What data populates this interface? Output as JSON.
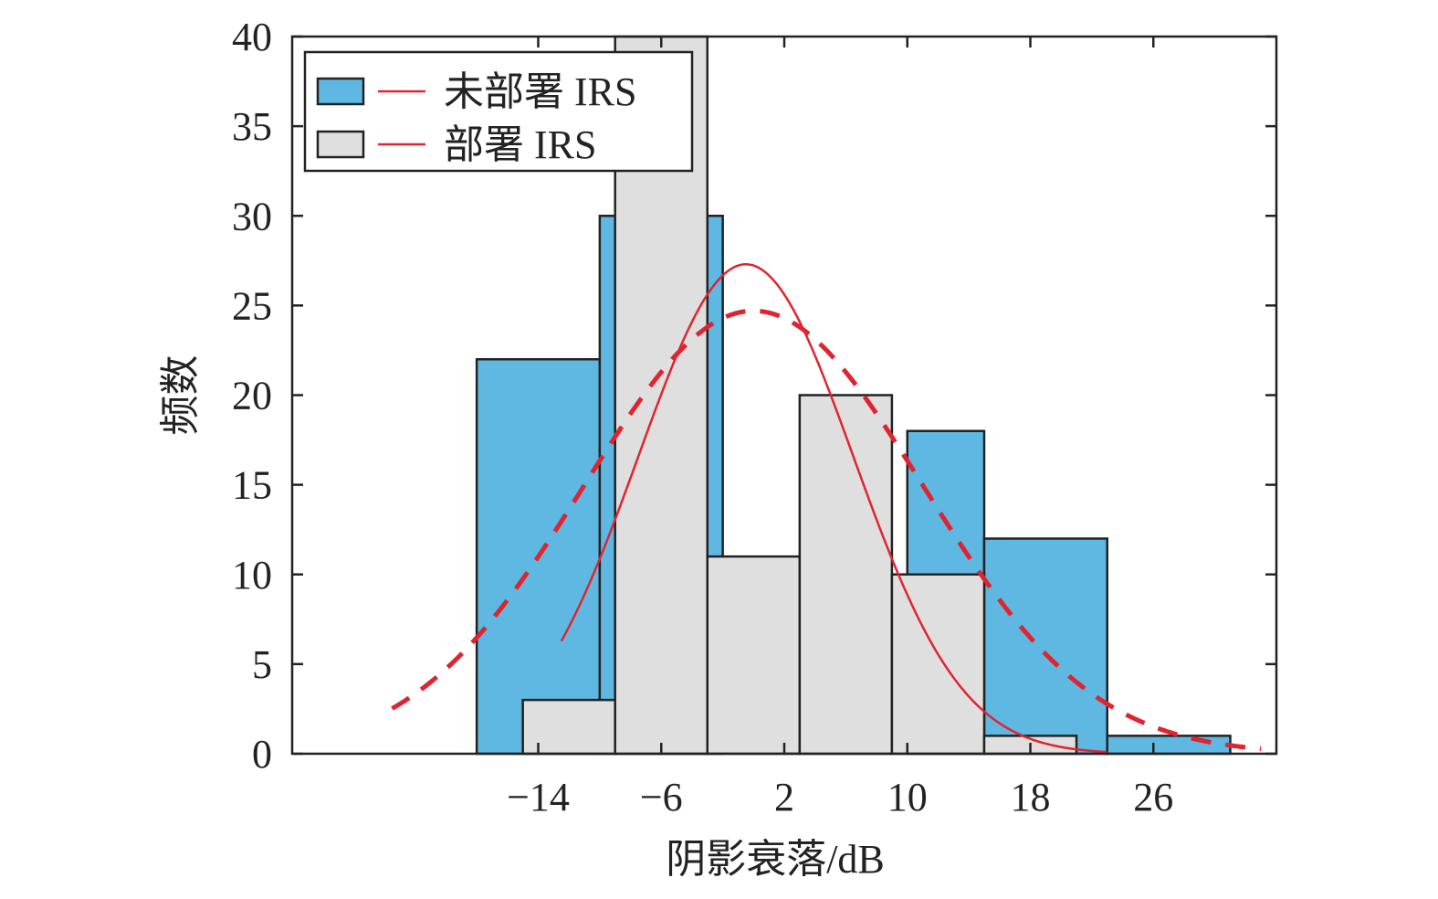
{
  "chart_data": {
    "type": "bar",
    "xlabel": "阴影衰落/dB",
    "ylabel": "频数",
    "xlim": [
      -30,
      34
    ],
    "ylim": [
      0,
      40
    ],
    "xticks": [
      "-14",
      "-6",
      "2",
      "10",
      "18",
      "26"
    ],
    "xtick_values": [
      -14,
      -6,
      2,
      10,
      18,
      26
    ],
    "yticks": [
      "0",
      "5",
      "10",
      "15",
      "20",
      "25",
      "30",
      "35",
      "40"
    ],
    "ytick_values": [
      0,
      5,
      10,
      15,
      20,
      25,
      30,
      35,
      40
    ],
    "legend_position": "top-left",
    "series": [
      {
        "name": "未部署 IRS",
        "color": "#5fb8e2",
        "bins": [
          {
            "x0": -18,
            "x1": -10,
            "count": 22
          },
          {
            "x0": -10,
            "x1": -2,
            "count": 30
          },
          {
            "x0": 10,
            "x1": 15,
            "count": 18
          },
          {
            "x0": 15,
            "x1": 23,
            "count": 12
          },
          {
            "x0": 23,
            "x1": 31,
            "count": 1
          }
        ],
        "fit": {
          "style": "dashed",
          "color": "#e0242f",
          "mean": 0,
          "sd": 11,
          "peak": 24.7,
          "range": [
            -23.5,
            33
          ]
        }
      },
      {
        "name": "部署 IRS",
        "color": "#e0dfdf",
        "bins": [
          {
            "x0": -15,
            "x1": -9,
            "count": 3
          },
          {
            "x0": -9,
            "x1": -3,
            "count": 40
          },
          {
            "x0": -3,
            "x1": 3,
            "count": 11
          },
          {
            "x0": 3,
            "x1": 9,
            "count": 20
          },
          {
            "x0": 9,
            "x1": 15,
            "count": 10
          },
          {
            "x0": 15,
            "x1": 21,
            "count": 1
          }
        ],
        "fit": {
          "style": "solid",
          "color": "#e0242f",
          "mean": -0.5,
          "sd": 7,
          "peak": 27.3,
          "range": [
            -12.5,
            23
          ]
        }
      }
    ]
  }
}
